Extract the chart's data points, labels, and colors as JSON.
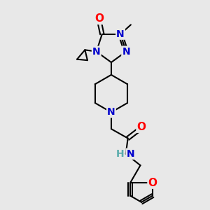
{
  "bg_color": "#e8e8e8",
  "atom_colors": {
    "C": "#000000",
    "N": "#0000cc",
    "O": "#ff0000",
    "H": "#5aacac"
  },
  "bond_color": "#000000",
  "font_size_atom": 10,
  "font_size_small": 8
}
